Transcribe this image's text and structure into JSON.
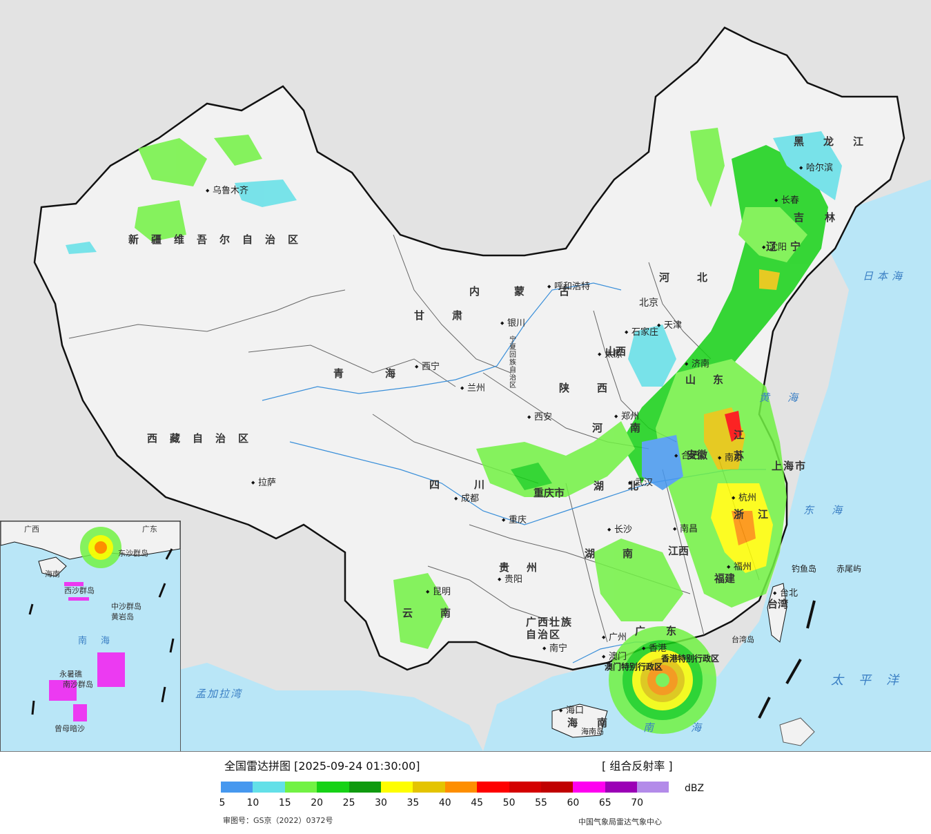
{
  "map": {
    "regions": [
      "新疆维吾尔自治区",
      "西藏自治区",
      "青海",
      "甘肃",
      "内蒙古",
      "黑龙江",
      "吉林",
      "辽宁",
      "河北",
      "山西",
      "陕西",
      "四川",
      "云南",
      "贵州",
      "广西壮族自治区",
      "广东",
      "湖南",
      "湖北",
      "河南",
      "山东",
      "江苏",
      "浙江",
      "福建",
      "江西",
      "安徽",
      "海南",
      "重庆市",
      "上海市",
      "宁夏回族自治区",
      "香港特别行政区",
      "澳门特别行政区",
      "台湾"
    ],
    "cities": [
      "乌鲁木齐",
      "拉萨",
      "西宁",
      "兰州",
      "银川",
      "呼和浩特",
      "北京",
      "天津",
      "石家庄",
      "太原",
      "西安",
      "郑州",
      "济南",
      "合肥",
      "南京",
      "武汉",
      "长沙",
      "南昌",
      "杭州",
      "福州",
      "台北",
      "广州",
      "香港",
      "澳门",
      "南宁",
      "海口",
      "贵阳",
      "昆明",
      "成都",
      "重庆",
      "哈尔滨",
      "长春",
      "沈阳"
    ],
    "seas": [
      "日本海",
      "黄海",
      "东海",
      "南海",
      "太平洋",
      "孟加拉湾"
    ],
    "islands": [
      "钓鱼岛",
      "赤尾屿",
      "海南岛",
      "台湾岛"
    ],
    "inset_labels": [
      "南海",
      "海南",
      "东沙群岛",
      "中沙群岛",
      "黄岩岛",
      "永暑礁",
      "南沙群岛",
      "曾母暗沙",
      "西沙群岛",
      "广西",
      "广东"
    ],
    "colors": {
      "land": "#f2f2f2",
      "sea": "#b9e6f7",
      "border": "#111111",
      "river": "#3a8fd9"
    }
  },
  "legend": {
    "title": "全国雷达拼图 [2025-09-24 01:30:00]",
    "product": "[ 组合反射率 ]",
    "unit": "dBZ",
    "ticks": [
      "5",
      "10",
      "15",
      "20",
      "25",
      "30",
      "35",
      "40",
      "45",
      "50",
      "55",
      "60",
      "65",
      "70"
    ],
    "colors": [
      "#4698ef",
      "#63e0e8",
      "#72f244",
      "#16d216",
      "#0f9a0f",
      "#fefe00",
      "#e4c400",
      "#fe8e00",
      "#fe0000",
      "#d40000",
      "#c00000",
      "#fe00f0",
      "#9b00b6",
      "#b38be9"
    ],
    "review_number": "审图号：GS京（2022）0372号",
    "agency": "中国气象局雷达气象中心"
  }
}
